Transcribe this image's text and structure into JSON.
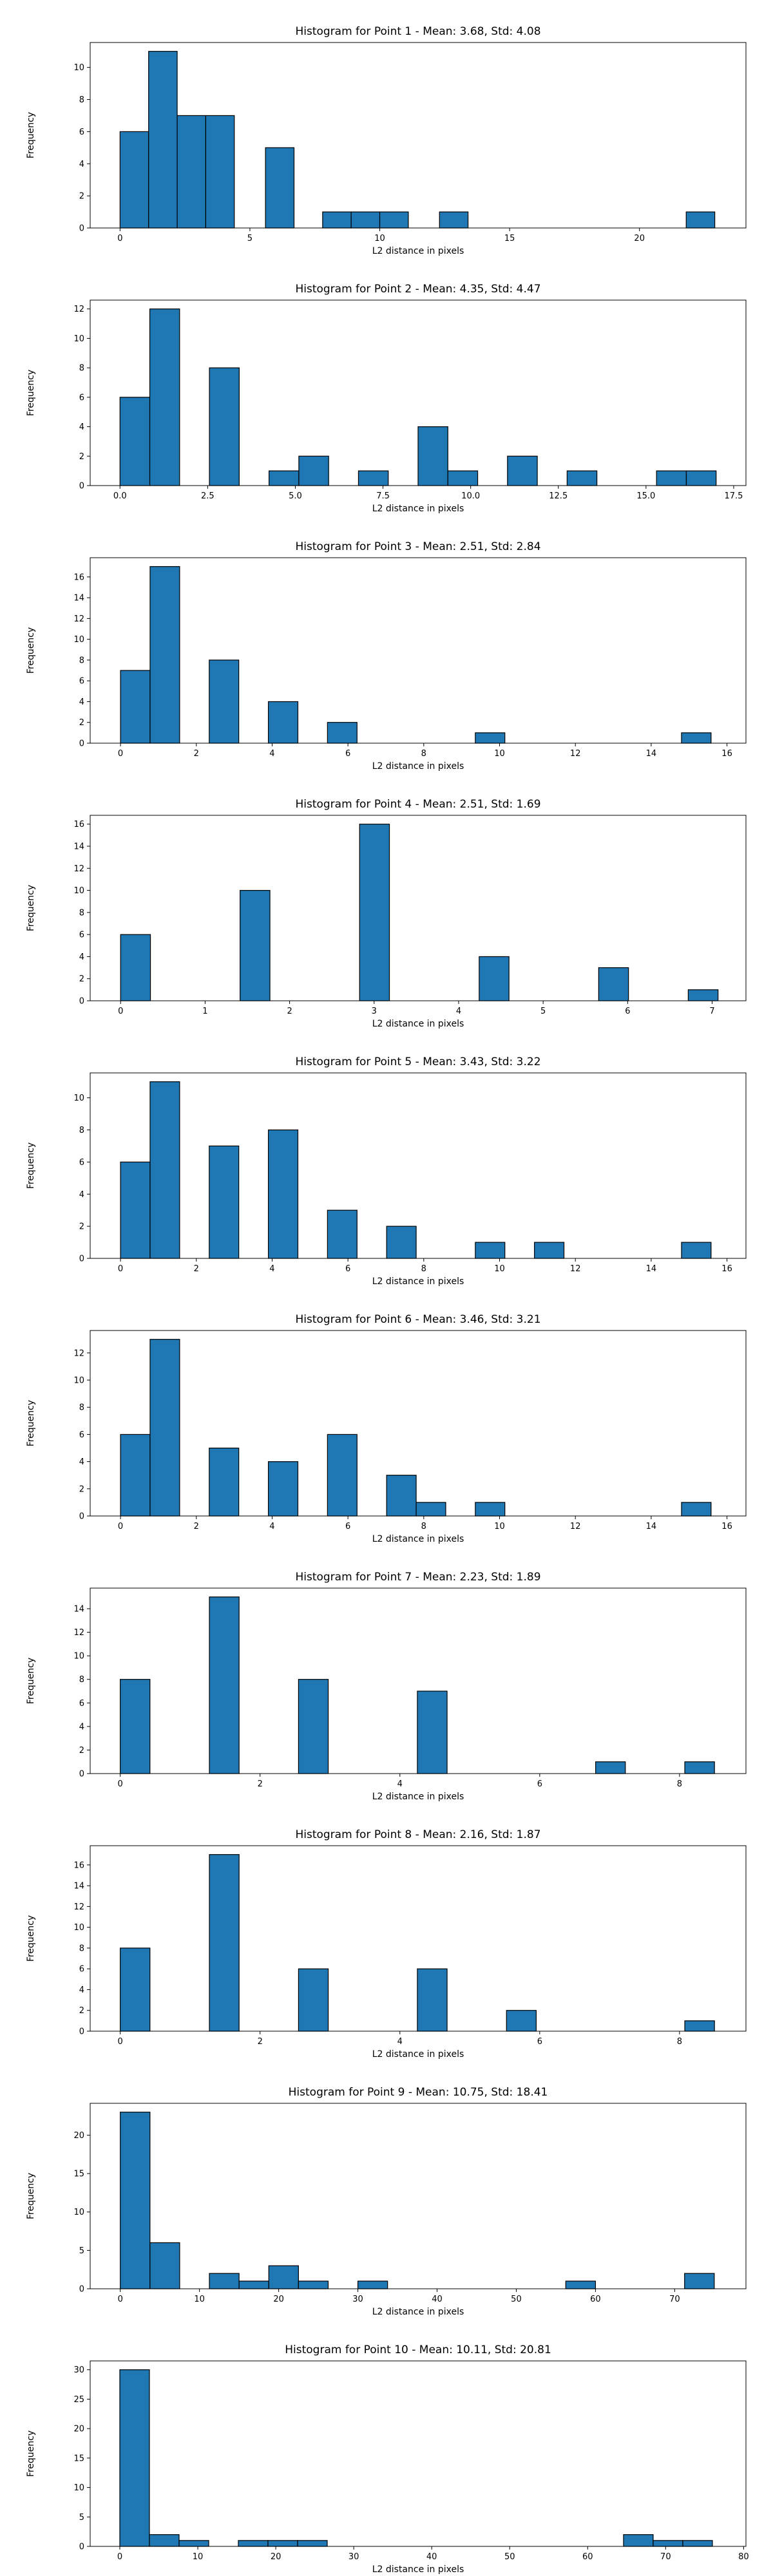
{
  "chart_data": [
    {
      "type": "bar",
      "title": "Histogram for Point 1 - Mean: 3.68, Std: 4.08",
      "xlabel": "L2 distance in pixels",
      "ylabel": "Frequency",
      "xlim": [
        -1.15,
        24.1
      ],
      "ylim": [
        0,
        11.55
      ],
      "xticks": [
        0,
        5,
        10,
        15,
        20
      ],
      "yticks": [
        0,
        2,
        4,
        6,
        8,
        10
      ],
      "bin_width": 1.1,
      "bars": [
        {
          "x": 0.0,
          "v": 6
        },
        {
          "x": 1.1,
          "v": 11
        },
        {
          "x": 2.2,
          "v": 7
        },
        {
          "x": 3.3,
          "v": 7
        },
        {
          "x": 5.6,
          "v": 5
        },
        {
          "x": 7.8,
          "v": 1
        },
        {
          "x": 8.9,
          "v": 1
        },
        {
          "x": 10.0,
          "v": 1
        },
        {
          "x": 12.3,
          "v": 1
        },
        {
          "x": 21.8,
          "v": 1
        }
      ],
      "grid": false
    },
    {
      "type": "bar",
      "title": "Histogram for Point 2 - Mean: 4.35, Std: 4.47",
      "xlabel": "L2 distance in pixels",
      "ylabel": "Frequency",
      "xlim": [
        -0.85,
        17.85
      ],
      "ylim": [
        0,
        12.6
      ],
      "xticks": [
        "0.0",
        "2.5",
        "5.0",
        "7.5",
        "10.0",
        "12.5",
        "15.0",
        "17.5"
      ],
      "yticks": [
        0,
        2,
        4,
        6,
        8,
        10,
        12
      ],
      "bin_width": 0.85,
      "bars": [
        {
          "x": 0.0,
          "v": 6
        },
        {
          "x": 0.85,
          "v": 12
        },
        {
          "x": 2.55,
          "v": 8
        },
        {
          "x": 4.25,
          "v": 1
        },
        {
          "x": 5.1,
          "v": 2
        },
        {
          "x": 6.8,
          "v": 1
        },
        {
          "x": 8.5,
          "v": 4
        },
        {
          "x": 9.35,
          "v": 1
        },
        {
          "x": 11.05,
          "v": 2
        },
        {
          "x": 12.75,
          "v": 1
        },
        {
          "x": 15.3,
          "v": 1
        },
        {
          "x": 16.15,
          "v": 1
        }
      ],
      "grid": false
    },
    {
      "type": "bar",
      "title": "Histogram for Point 3 - Mean: 2.51, Std: 2.84",
      "xlabel": "L2 distance in pixels",
      "ylabel": "Frequency",
      "xlim": [
        -0.8,
        16.5
      ],
      "ylim": [
        0,
        17.85
      ],
      "xticks": [
        0,
        2,
        4,
        6,
        8,
        10,
        12,
        14,
        16
      ],
      "yticks": [
        0,
        2,
        4,
        6,
        8,
        10,
        12,
        14,
        16
      ],
      "bin_width": 0.78,
      "bars": [
        {
          "x": 0.0,
          "v": 7
        },
        {
          "x": 0.78,
          "v": 17
        },
        {
          "x": 2.34,
          "v": 8
        },
        {
          "x": 3.9,
          "v": 4
        },
        {
          "x": 5.46,
          "v": 2
        },
        {
          "x": 9.36,
          "v": 1
        },
        {
          "x": 14.8,
          "v": 1
        }
      ],
      "grid": false
    },
    {
      "type": "bar",
      "title": "Histogram for Point 4 - Mean: 2.51, Std: 1.69",
      "xlabel": "L2 distance in pixels",
      "ylabel": "Frequency",
      "xlim": [
        -0.36,
        7.4
      ],
      "ylim": [
        0,
        16.8
      ],
      "xticks": [
        0,
        1,
        2,
        3,
        4,
        5,
        6,
        7
      ],
      "yticks": [
        0,
        2,
        4,
        6,
        8,
        10,
        12,
        14,
        16
      ],
      "bin_width": 0.353,
      "bars": [
        {
          "x": 0.0,
          "v": 6
        },
        {
          "x": 1.414,
          "v": 10
        },
        {
          "x": 2.828,
          "v": 16
        },
        {
          "x": 4.243,
          "v": 4
        },
        {
          "x": 5.657,
          "v": 3
        },
        {
          "x": 6.717,
          "v": 1
        }
      ],
      "grid": false
    },
    {
      "type": "bar",
      "title": "Histogram for Point 5 - Mean: 3.43, Std: 3.22",
      "xlabel": "L2 distance in pixels",
      "ylabel": "Frequency",
      "xlim": [
        -0.8,
        16.5
      ],
      "ylim": [
        0,
        11.55
      ],
      "xticks": [
        0,
        2,
        4,
        6,
        8,
        10,
        12,
        14,
        16
      ],
      "yticks": [
        0,
        2,
        4,
        6,
        8,
        10
      ],
      "bin_width": 0.78,
      "bars": [
        {
          "x": 0.0,
          "v": 6
        },
        {
          "x": 0.78,
          "v": 11
        },
        {
          "x": 2.34,
          "v": 7
        },
        {
          "x": 3.9,
          "v": 8
        },
        {
          "x": 5.46,
          "v": 3
        },
        {
          "x": 7.02,
          "v": 2
        },
        {
          "x": 9.36,
          "v": 1
        },
        {
          "x": 10.92,
          "v": 1
        },
        {
          "x": 14.8,
          "v": 1
        }
      ],
      "grid": false
    },
    {
      "type": "bar",
      "title": "Histogram for Point 6 - Mean: 3.46, Std: 3.21",
      "xlabel": "L2 distance in pixels",
      "ylabel": "Frequency",
      "xlim": [
        -0.8,
        16.5
      ],
      "ylim": [
        0,
        13.65
      ],
      "xticks": [
        0,
        2,
        4,
        6,
        8,
        10,
        12,
        14,
        16
      ],
      "yticks": [
        0,
        2,
        4,
        6,
        8,
        10,
        12
      ],
      "bin_width": 0.78,
      "bars": [
        {
          "x": 0.0,
          "v": 6
        },
        {
          "x": 0.78,
          "v": 13
        },
        {
          "x": 2.34,
          "v": 5
        },
        {
          "x": 3.9,
          "v": 4
        },
        {
          "x": 5.46,
          "v": 6
        },
        {
          "x": 7.02,
          "v": 3
        },
        {
          "x": 7.8,
          "v": 1
        },
        {
          "x": 9.36,
          "v": 1
        },
        {
          "x": 14.8,
          "v": 1
        }
      ],
      "grid": false
    },
    {
      "type": "bar",
      "title": "Histogram for Point 7 - Mean: 2.23, Std: 1.89",
      "xlabel": "L2 distance in pixels",
      "ylabel": "Frequency",
      "xlim": [
        -0.43,
        8.95
      ],
      "ylim": [
        0,
        15.75
      ],
      "xticks": [
        0,
        2,
        4,
        6,
        8
      ],
      "yticks": [
        0,
        2,
        4,
        6,
        8,
        10,
        12,
        14
      ],
      "bin_width": 0.425,
      "bars": [
        {
          "x": 0.0,
          "v": 8
        },
        {
          "x": 1.275,
          "v": 15
        },
        {
          "x": 2.55,
          "v": 8
        },
        {
          "x": 4.25,
          "v": 7
        },
        {
          "x": 6.8,
          "v": 1
        },
        {
          "x": 8.075,
          "v": 1
        }
      ],
      "grid": false
    },
    {
      "type": "bar",
      "title": "Histogram for Point 8 - Mean: 2.16, Std: 1.87",
      "xlabel": "L2 distance in pixels",
      "ylabel": "Frequency",
      "xlim": [
        -0.43,
        8.95
      ],
      "ylim": [
        0,
        17.85
      ],
      "xticks": [
        0,
        2,
        4,
        6,
        8
      ],
      "yticks": [
        0,
        2,
        4,
        6,
        8,
        10,
        12,
        14,
        16
      ],
      "bin_width": 0.425,
      "bars": [
        {
          "x": 0.0,
          "v": 8
        },
        {
          "x": 1.275,
          "v": 17
        },
        {
          "x": 2.55,
          "v": 6
        },
        {
          "x": 4.25,
          "v": 6
        },
        {
          "x": 5.525,
          "v": 2
        },
        {
          "x": 8.075,
          "v": 1
        }
      ],
      "grid": false
    },
    {
      "type": "bar",
      "title": "Histogram for Point 9 - Mean: 10.75, Std: 18.41",
      "xlabel": "L2 distance in pixels",
      "ylabel": "Frequency",
      "xlim": [
        -3.8,
        79.0
      ],
      "ylim": [
        0,
        24.15
      ],
      "xticks": [
        0,
        10,
        20,
        30,
        40,
        50,
        60,
        70
      ],
      "yticks": [
        0,
        5,
        10,
        15,
        20
      ],
      "bin_width": 3.75,
      "bars": [
        {
          "x": 0.0,
          "v": 23
        },
        {
          "x": 3.75,
          "v": 6
        },
        {
          "x": 11.25,
          "v": 2
        },
        {
          "x": 15.0,
          "v": 1
        },
        {
          "x": 18.75,
          "v": 3
        },
        {
          "x": 22.5,
          "v": 1
        },
        {
          "x": 30.0,
          "v": 1
        },
        {
          "x": 56.25,
          "v": 1
        },
        {
          "x": 71.25,
          "v": 2
        }
      ],
      "grid": false
    },
    {
      "type": "bar",
      "title": "Histogram for Point 10 - Mean: 10.11, Std: 20.81",
      "xlabel": "L2 distance in pixels",
      "ylabel": "Frequency",
      "xlim": [
        -3.8,
        80.3
      ],
      "ylim": [
        0,
        31.5
      ],
      "xticks": [
        0,
        10,
        20,
        30,
        40,
        50,
        60,
        70,
        80
      ],
      "yticks": [
        0,
        5,
        10,
        15,
        20,
        25,
        30
      ],
      "bin_width": 3.8,
      "bars": [
        {
          "x": 0.0,
          "v": 30
        },
        {
          "x": 3.8,
          "v": 2
        },
        {
          "x": 7.6,
          "v": 1
        },
        {
          "x": 15.2,
          "v": 1
        },
        {
          "x": 19.0,
          "v": 1
        },
        {
          "x": 22.8,
          "v": 1
        },
        {
          "x": 64.6,
          "v": 2
        },
        {
          "x": 68.4,
          "v": 1
        },
        {
          "x": 72.2,
          "v": 1
        }
      ],
      "grid": false
    }
  ]
}
